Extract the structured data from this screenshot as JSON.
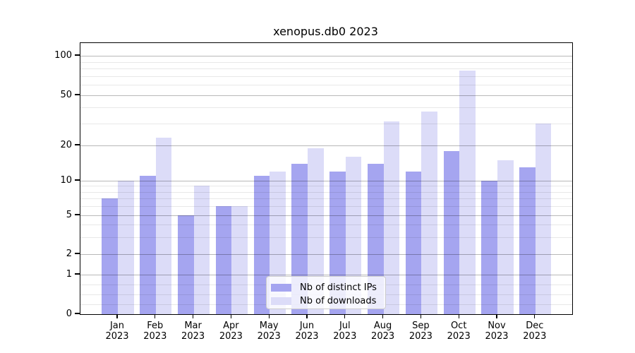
{
  "title": "xenopus.db0 2023",
  "colors": {
    "ips_bar": "#a5a5f0",
    "downloads_bar": "#dcdcf8",
    "spine": "#000000",
    "grid_major": "rgba(0,0,0,0.28)",
    "grid_minor": "rgba(0,0,0,0.09)"
  },
  "legend": {
    "items": [
      {
        "label": "Nb of distinct IPs",
        "series": "ips"
      },
      {
        "label": "Nb of downloads",
        "series": "downloads"
      }
    ]
  },
  "y_axis": {
    "tick_labels": [
      100,
      50,
      20,
      10,
      5,
      2,
      1,
      0
    ],
    "minor_values": [
      0.25,
      0.5,
      0.75,
      3,
      4,
      6,
      7,
      8,
      9,
      30,
      40,
      60,
      70,
      80,
      90
    ]
  },
  "x_axis": {
    "months": [
      "Jan",
      "Feb",
      "Mar",
      "Apr",
      "May",
      "Jun",
      "Jul",
      "Aug",
      "Sep",
      "Oct",
      "Nov",
      "Dec"
    ],
    "year": "2023"
  },
  "chart_data": {
    "type": "bar",
    "title": "xenopus.db0 2023",
    "categories": [
      "Jan 2023",
      "Feb 2023",
      "Mar 2023",
      "Apr 2023",
      "May 2023",
      "Jun 2023",
      "Jul 2023",
      "Aug 2023",
      "Sep 2023",
      "Oct 2023",
      "Nov 2023",
      "Dec 2023"
    ],
    "series": [
      {
        "name": "Nb of distinct IPs",
        "values": [
          7,
          11,
          5,
          6,
          11,
          14,
          12,
          14,
          12,
          18,
          10,
          13
        ]
      },
      {
        "name": "Nb of downloads",
        "values": [
          10,
          23,
          9,
          6,
          12,
          19,
          16,
          31,
          37,
          77,
          15,
          30
        ]
      }
    ],
    "xlabel": "",
    "ylabel": "",
    "yscale": "symlog",
    "yticks": [
      0,
      1,
      2,
      5,
      10,
      20,
      50,
      100
    ],
    "ylim": [
      0,
      125
    ],
    "grid": true,
    "legend_position": "lower center"
  }
}
